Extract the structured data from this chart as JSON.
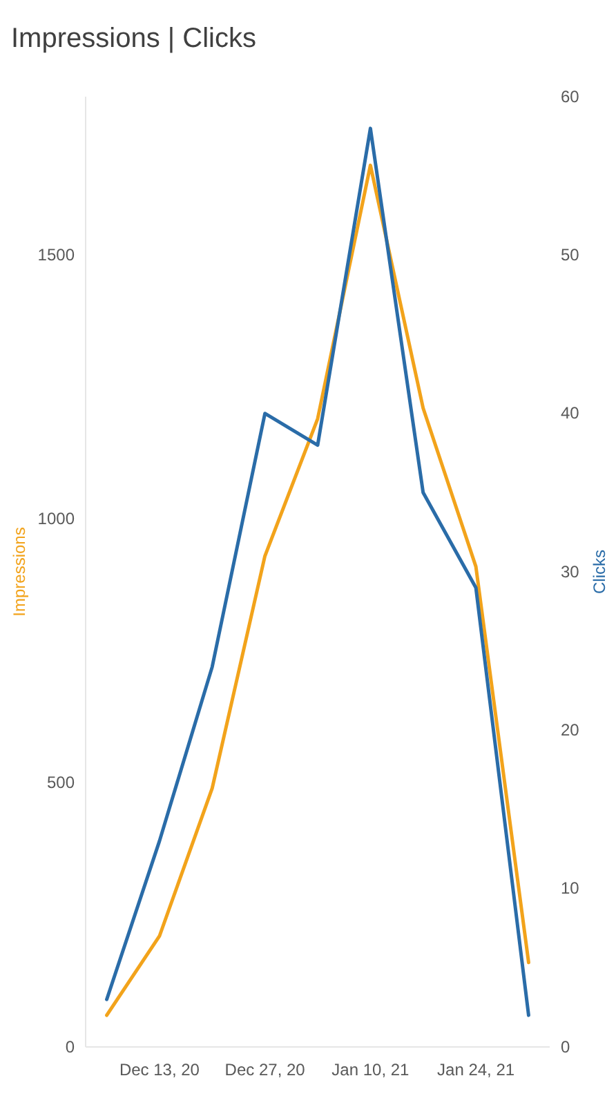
{
  "chart_data": {
    "type": "line",
    "title": "Impressions | Clicks",
    "ylabel": "Impressions",
    "y2label": "Clicks",
    "categories": [
      null,
      "Dec 13, 20",
      null,
      "Dec 27, 20",
      null,
      "Jan 10, 21",
      null,
      "Jan 24, 21",
      null
    ],
    "series": [
      {
        "color": "#f2a31b",
        "values": [
          60,
          210,
          490,
          930,
          1190,
          1670,
          1210,
          910,
          160
        ]
      },
      {
        "color": "#2a6ca8",
        "axis": "y2",
        "values": [
          3,
          13,
          24,
          40,
          38,
          58,
          35,
          29,
          2
        ]
      }
    ],
    "ylim": [
      0,
      1800
    ],
    "yticks": [
      0,
      500,
      1000,
      1500
    ],
    "y2lim": [
      0,
      60
    ],
    "y2ticks": [
      0,
      10,
      20,
      30,
      40,
      50,
      60
    ],
    "grid": false,
    "legend": false,
    "marker": "none",
    "line_style": "solid"
  }
}
